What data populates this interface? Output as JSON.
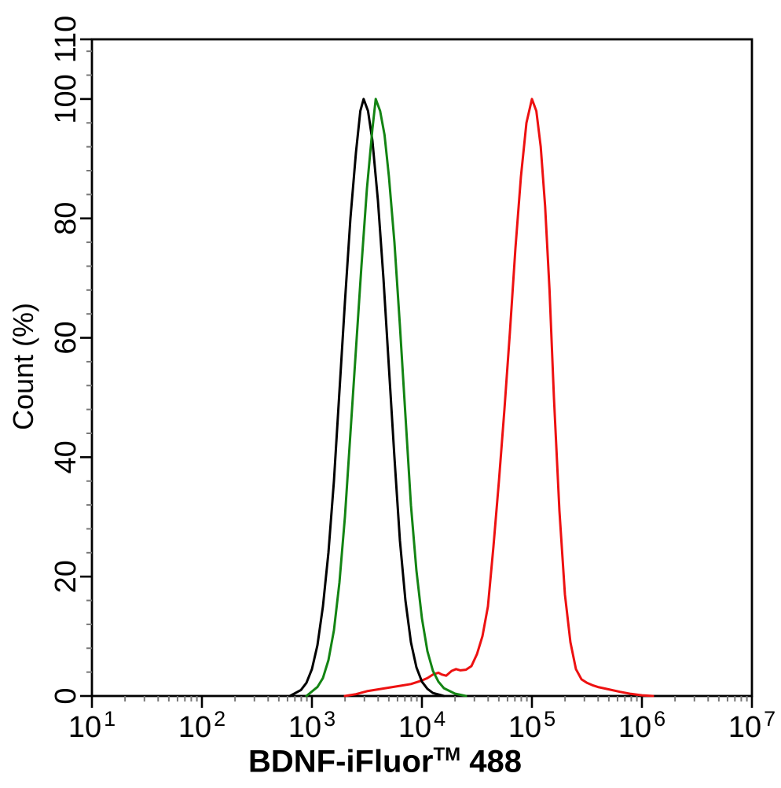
{
  "chart_data": {
    "type": "line",
    "subtype": "flow-cytometry-overlay-histogram",
    "title": "",
    "xlabel": "BDNF-iFluor™ 488",
    "xlabel_parts": {
      "prefix": "BDNF-iFluor",
      "sup": "TM",
      "suffix": " 488"
    },
    "ylabel": "Count  (%)",
    "x_scale": "log10",
    "xlim_log": [
      1,
      7
    ],
    "ylim": [
      0,
      110
    ],
    "grid": false,
    "legend": null,
    "x_tick_base": "10",
    "x_major_exps": [
      1,
      2,
      3,
      4,
      5,
      6,
      7
    ],
    "x_minor_mantissas": [
      2,
      3,
      4,
      5,
      6,
      7,
      8,
      9
    ],
    "y_major_ticks": [
      0,
      20,
      40,
      60,
      80,
      100,
      110
    ],
    "y_minor_step": 4,
    "axis_color": "#000000",
    "minor_tick_color": "#777777",
    "series": [
      {
        "name": "black-curve",
        "color": "#000000",
        "layer": 1,
        "peak_x": 3000,
        "peak_y": 100,
        "points": [
          [
            2.8,
            0
          ],
          [
            2.9,
            1
          ],
          [
            2.95,
            2.2
          ],
          [
            3.0,
            4.5
          ],
          [
            3.05,
            8.5
          ],
          [
            3.1,
            15
          ],
          [
            3.15,
            24
          ],
          [
            3.2,
            36
          ],
          [
            3.25,
            51
          ],
          [
            3.3,
            66
          ],
          [
            3.35,
            80
          ],
          [
            3.4,
            91
          ],
          [
            3.44,
            98
          ],
          [
            3.47,
            100
          ],
          [
            3.51,
            98
          ],
          [
            3.55,
            93
          ],
          [
            3.6,
            83
          ],
          [
            3.65,
            70
          ],
          [
            3.7,
            55
          ],
          [
            3.75,
            40
          ],
          [
            3.8,
            26
          ],
          [
            3.85,
            16
          ],
          [
            3.9,
            9
          ],
          [
            3.95,
            4.8
          ],
          [
            4.0,
            2.4
          ],
          [
            4.05,
            1.2
          ],
          [
            4.1,
            0.5
          ],
          [
            4.2,
            0
          ]
        ]
      },
      {
        "name": "green-curve",
        "color": "#138413",
        "layer": 2,
        "peak_x": 3800,
        "peak_y": 100,
        "points": [
          [
            2.95,
            0
          ],
          [
            3.05,
            1.5
          ],
          [
            3.1,
            3
          ],
          [
            3.15,
            6
          ],
          [
            3.2,
            11
          ],
          [
            3.25,
            19
          ],
          [
            3.3,
            30
          ],
          [
            3.35,
            44
          ],
          [
            3.4,
            58
          ],
          [
            3.45,
            72
          ],
          [
            3.5,
            85
          ],
          [
            3.55,
            95
          ],
          [
            3.58,
            100
          ],
          [
            3.62,
            98
          ],
          [
            3.66,
            94
          ],
          [
            3.7,
            87
          ],
          [
            3.75,
            76
          ],
          [
            3.8,
            62
          ],
          [
            3.85,
            47
          ],
          [
            3.9,
            32
          ],
          [
            3.95,
            21
          ],
          [
            4.0,
            13
          ],
          [
            4.05,
            7.5
          ],
          [
            4.1,
            4.2
          ],
          [
            4.15,
            2.4
          ],
          [
            4.2,
            1.3
          ],
          [
            4.3,
            0.4
          ],
          [
            4.4,
            0
          ]
        ]
      },
      {
        "name": "red-curve",
        "color": "#ed1111",
        "layer": 0,
        "peak_x": 100000,
        "peak_y": 100,
        "points": [
          [
            3.3,
            0
          ],
          [
            3.4,
            0.3
          ],
          [
            3.5,
            0.8
          ],
          [
            3.6,
            1.1
          ],
          [
            3.7,
            1.4
          ],
          [
            3.8,
            1.7
          ],
          [
            3.9,
            2.0
          ],
          [
            4.0,
            2.6
          ],
          [
            4.05,
            3.0
          ],
          [
            4.1,
            3.6
          ],
          [
            4.15,
            3.9
          ],
          [
            4.18,
            3.6
          ],
          [
            4.22,
            3.4
          ],
          [
            4.27,
            4.2
          ],
          [
            4.31,
            4.5
          ],
          [
            4.35,
            4.3
          ],
          [
            4.4,
            4.4
          ],
          [
            4.45,
            5.0
          ],
          [
            4.5,
            7
          ],
          [
            4.55,
            10
          ],
          [
            4.6,
            15
          ],
          [
            4.65,
            25
          ],
          [
            4.7,
            36
          ],
          [
            4.75,
            48
          ],
          [
            4.8,
            61
          ],
          [
            4.85,
            75
          ],
          [
            4.9,
            87
          ],
          [
            4.95,
            96
          ],
          [
            5.0,
            100
          ],
          [
            5.04,
            98
          ],
          [
            5.08,
            92
          ],
          [
            5.12,
            82
          ],
          [
            5.16,
            68
          ],
          [
            5.2,
            50
          ],
          [
            5.25,
            31
          ],
          [
            5.3,
            17
          ],
          [
            5.35,
            9
          ],
          [
            5.4,
            4.5
          ],
          [
            5.45,
            2.8
          ],
          [
            5.5,
            2.2
          ],
          [
            5.55,
            1.8
          ],
          [
            5.6,
            1.5
          ],
          [
            5.7,
            1.1
          ],
          [
            5.8,
            0.7
          ],
          [
            5.9,
            0.35
          ],
          [
            6.0,
            0.12
          ],
          [
            6.1,
            0
          ]
        ]
      }
    ]
  }
}
